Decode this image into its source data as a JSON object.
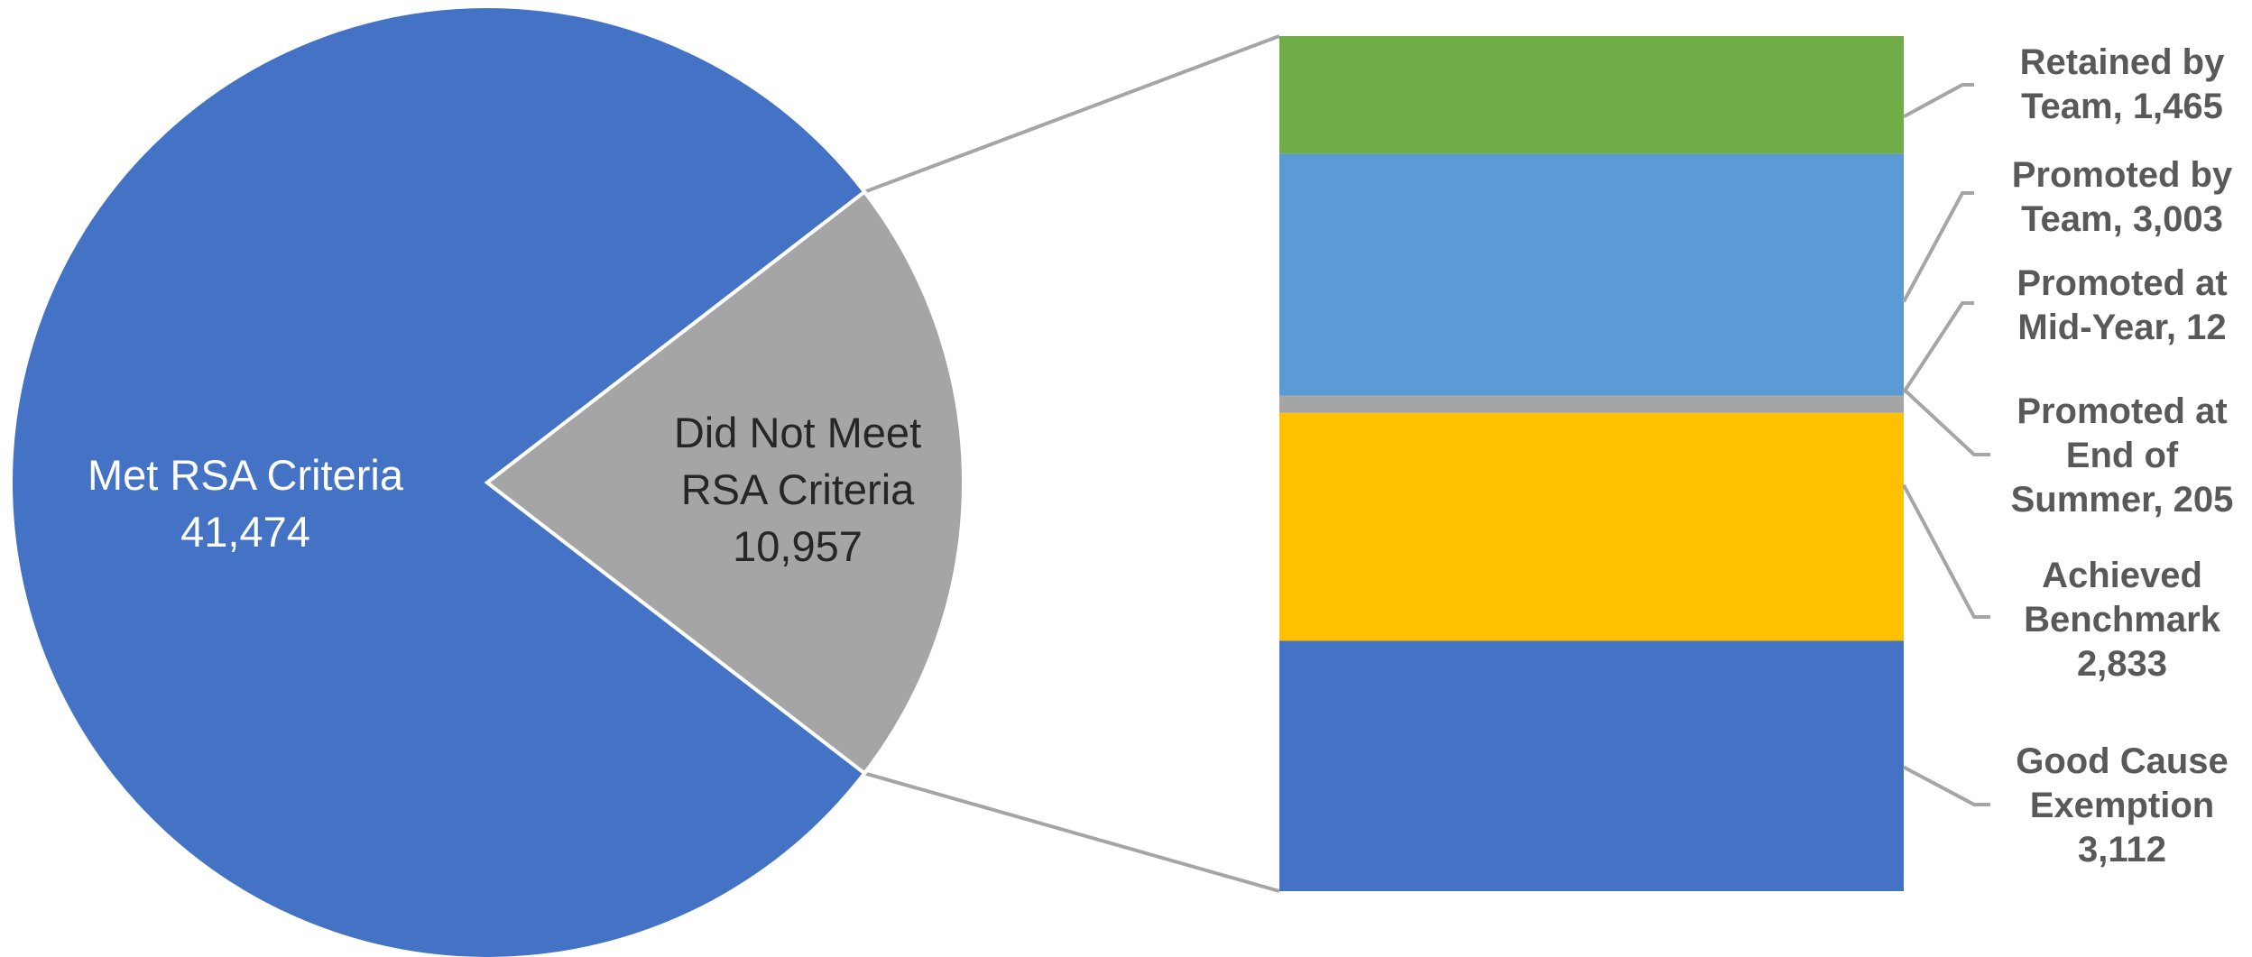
{
  "chart_data": {
    "type": "bar-of-pie",
    "title": "",
    "pie": {
      "slices": [
        {
          "name": "Met RSA Criteria",
          "label_lines": [
            "Met RSA Criteria",
            "41,474"
          ],
          "value": 41474,
          "color": "#4472C4",
          "label_color": "#FFFFFF"
        },
        {
          "name": "Did Not Meet RSA Criteria",
          "label_lines": [
            "Did Not Meet",
            "RSA Criteria",
            "10,957"
          ],
          "value": 10957,
          "color": "#A5A5A5",
          "label_color": "#262626"
        }
      ]
    },
    "bar": {
      "segments_top_to_bottom": [
        {
          "name": "Retained by Team",
          "label_lines": [
            "Retained by",
            "Team, 1,465"
          ],
          "value": 1465,
          "color": "#70AD47"
        },
        {
          "name": "Promoted by Team",
          "label_lines": [
            "Promoted by",
            "Team, 3,003"
          ],
          "value": 3003,
          "color": "#5B9BD5"
        },
        {
          "name": "Promoted at Mid-Year",
          "label_lines": [
            "Promoted at",
            "Mid-Year, 12"
          ],
          "value": 12,
          "color": "#A5A5A5"
        },
        {
          "name": "Promoted at End of Summer",
          "label_lines": [
            "Promoted at",
            "End of",
            "Summer, 205"
          ],
          "value": 205,
          "color": "#A5A5A5"
        },
        {
          "name": "Achieved Benchmark",
          "label_lines": [
            "Achieved",
            "Benchmark",
            "2,833"
          ],
          "value": 2833,
          "color": "#FFC000"
        },
        {
          "name": "Good Cause Exemption",
          "label_lines": [
            "Good Cause",
            "Exemption",
            "3,112"
          ],
          "value": 3112,
          "color": "#4472C4"
        }
      ]
    },
    "connector_color": "#A5A5A5",
    "leader_color": "#A5A5A5"
  }
}
